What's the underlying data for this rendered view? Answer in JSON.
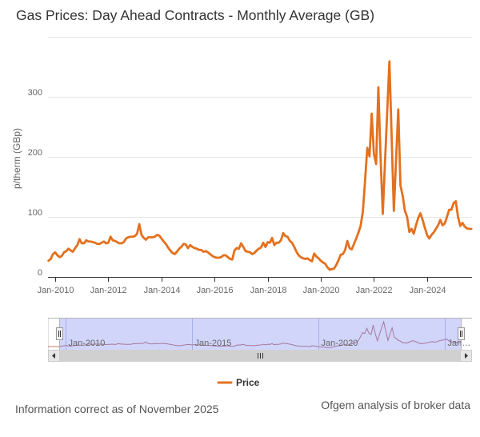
{
  "colors": {
    "series": "#e3711f",
    "navigator_series": "#c27a74",
    "grid": "#e6e6e6",
    "axis": "#333333",
    "navigator_mask": "#6673f0",
    "scrollbar": "#d0d0d0"
  },
  "chart_data": {
    "type": "line",
    "title": "Gas Prices: Day Ahead Contracts - Monthly Average (GB)",
    "xlabel": "",
    "ylabel": "p/therm (GBp)",
    "ylim": [
      0,
      400
    ],
    "yticks": [
      0,
      100,
      200,
      300
    ],
    "ytick_labels": [
      "0",
      "100",
      "200",
      "300"
    ],
    "xtick_labels": [
      "Jan-2010",
      "Jan-2012",
      "Jan-2014",
      "Jan-2016",
      "Jan-2018",
      "Jan-2020",
      "Jan-2022",
      "Jan-2024"
    ],
    "x_start": "2009-10",
    "x_frequency": "monthly",
    "grid": true,
    "legend": "bottom-center",
    "series": [
      {
        "name": "Price",
        "values": [
          27,
          30,
          38,
          41,
          36,
          33,
          35,
          41,
          43,
          47,
          44,
          42,
          48,
          53,
          63,
          56,
          56,
          61,
          59,
          59,
          58,
          57,
          55,
          55,
          57,
          59,
          56,
          57,
          67,
          61,
          60,
          58,
          56,
          56,
          58,
          64,
          66,
          67,
          67,
          68,
          72,
          88,
          70,
          65,
          62,
          66,
          66,
          66,
          67,
          70,
          69,
          64,
          59,
          55,
          49,
          44,
          40,
          38,
          42,
          47,
          50,
          55,
          54,
          48,
          53,
          50,
          48,
          47,
          45,
          45,
          42,
          43,
          41,
          38,
          35,
          33,
          32,
          32,
          33,
          36,
          36,
          33,
          30,
          29,
          44,
          48,
          47,
          56,
          50,
          43,
          42,
          41,
          38,
          40,
          44,
          47,
          49,
          57,
          50,
          58,
          57,
          65,
          53,
          57,
          57,
          61,
          73,
          68,
          67,
          60,
          57,
          50,
          42,
          36,
          33,
          31,
          30,
          31,
          28,
          26,
          39,
          34,
          31,
          27,
          24,
          22,
          16,
          12,
          13,
          14,
          20,
          28,
          37,
          38,
          45,
          60,
          48,
          46,
          55,
          64,
          74,
          85,
          109,
          160,
          215,
          201,
          272,
          205,
          188,
          316,
          200,
          105,
          190,
          275,
          359,
          235,
          110,
          195,
          279,
          152,
          135,
          110,
          100,
          75,
          80,
          72,
          86,
          98,
          106,
          95,
          82,
          70,
          64,
          70,
          74,
          80,
          86,
          95,
          86,
          89,
          100,
          112,
          112,
          123,
          126,
          100,
          85,
          90,
          84,
          81,
          80,
          80
        ]
      }
    ]
  },
  "navigator": {
    "tick_labels": [
      "Jan-2010",
      "Jan-2015",
      "Jan-2020",
      "Jan…"
    ]
  },
  "footer": {
    "note": "Information correct as of November 2025",
    "source": "Ofgem analysis of broker data"
  }
}
